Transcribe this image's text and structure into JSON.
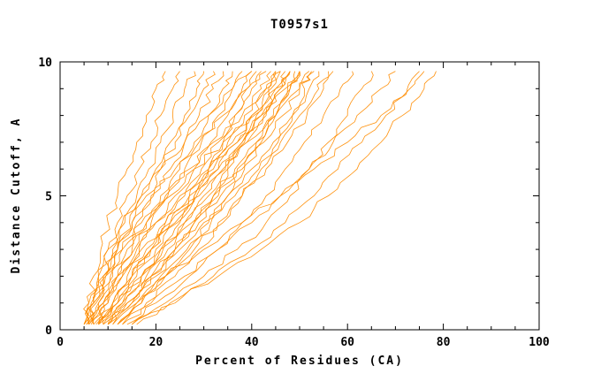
{
  "chart_data": {
    "type": "line",
    "title": "T0957s1",
    "xlabel": "Percent of Residues (CA)",
    "ylabel": "Distance Cutoff, A",
    "xlim": [
      0,
      100
    ],
    "ylim": [
      0,
      10
    ],
    "x_ticks": [
      0,
      20,
      40,
      60,
      80,
      100
    ],
    "y_ticks": [
      0,
      5,
      10
    ],
    "x_minor_step": 5,
    "y_minor_step": 1,
    "grid": false,
    "legend": "none",
    "series_color": "#ff8c00",
    "axis_color": "#000000",
    "background_color": "#ffffff",
    "y_levels": [
      0.2,
      1,
      2,
      3,
      4,
      5,
      6,
      7,
      8,
      9,
      9.65
    ],
    "series": [
      [
        5,
        6,
        7,
        8.5,
        10,
        12,
        14,
        16,
        18,
        20,
        22
      ],
      [
        5,
        6.5,
        8,
        10,
        12,
        14,
        16.5,
        19,
        21,
        23.5,
        25
      ],
      [
        5.5,
        7,
        9,
        11,
        13.5,
        16,
        18.5,
        21,
        23.5,
        26,
        28
      ],
      [
        6,
        7.5,
        9.5,
        12,
        14.5,
        17,
        20,
        23,
        26,
        28.5,
        30
      ],
      [
        5,
        7,
        9,
        12,
        15,
        18,
        21,
        24,
        27,
        30,
        32
      ],
      [
        6,
        8,
        10.5,
        13,
        16,
        19.5,
        23,
        26,
        29,
        32,
        34
      ],
      [
        7,
        9,
        12,
        15,
        18,
        21,
        25,
        28,
        31,
        34,
        36
      ],
      [
        6.5,
        9,
        12,
        15.5,
        19,
        22.5,
        26,
        29.5,
        33,
        36,
        38
      ],
      [
        7,
        10,
        13,
        16.5,
        20,
        24,
        28,
        31.5,
        35,
        38,
        40
      ],
      [
        8,
        11,
        14,
        18,
        22,
        26,
        29.5,
        33,
        36.5,
        40,
        42
      ],
      [
        7.5,
        11,
        15,
        19,
        23,
        27,
        31,
        35,
        38.5,
        42,
        44
      ],
      [
        8,
        12,
        16,
        20,
        24.5,
        28.5,
        33,
        37,
        40.5,
        44,
        46
      ],
      [
        9,
        13,
        17,
        21.5,
        26,
        30,
        34.5,
        38.5,
        42.5,
        46,
        48
      ],
      [
        9,
        13.5,
        18,
        22.5,
        27.5,
        32,
        36.5,
        41,
        44.5,
        48,
        50
      ],
      [
        10,
        14,
        19,
        24,
        29,
        33.5,
        38,
        42.5,
        46.5,
        50,
        52
      ],
      [
        10,
        15,
        20,
        25,
        30,
        35,
        40,
        44.5,
        48.5,
        52,
        54
      ],
      [
        11,
        16,
        21,
        26.5,
        31.5,
        36.5,
        41.5,
        46,
        50,
        54,
        56
      ],
      [
        12,
        17,
        22,
        28,
        33,
        38,
        43,
        47.5,
        51.5,
        55,
        57
      ],
      [
        5,
        6,
        8,
        10,
        13,
        17,
        21,
        26,
        31,
        36,
        40
      ],
      [
        6,
        7,
        9,
        12,
        15,
        19,
        24,
        29,
        34,
        39,
        43
      ],
      [
        5.5,
        7,
        9.5,
        13,
        17,
        22,
        27,
        32,
        38,
        43,
        46
      ],
      [
        6,
        8,
        11,
        14,
        18,
        23,
        28,
        34,
        40,
        45,
        48
      ],
      [
        7,
        9,
        12,
        16,
        20,
        25,
        31,
        37,
        42,
        47,
        50
      ],
      [
        8,
        10,
        13,
        17,
        22,
        27,
        33,
        39,
        45,
        50,
        53
      ],
      [
        8,
        12,
        17,
        21,
        25,
        28,
        31,
        34,
        36.5,
        39,
        41
      ],
      [
        10,
        14,
        19,
        24,
        28,
        32,
        35,
        38,
        41,
        43.5,
        45
      ],
      [
        12,
        17,
        22,
        27,
        31,
        35,
        38.5,
        42,
        45,
        47.5,
        49
      ],
      [
        13,
        18,
        24,
        29,
        34,
        38,
        42,
        45.5,
        48.5,
        51,
        52.5
      ],
      [
        14,
        20,
        27,
        33,
        38,
        43,
        47,
        51,
        55,
        58.5,
        61
      ],
      [
        15,
        22,
        30,
        37,
        43,
        48,
        52,
        56,
        60,
        63,
        65
      ],
      [
        13,
        19,
        26,
        33,
        40,
        46,
        52,
        57,
        62,
        67,
        70
      ],
      [
        16,
        24,
        32,
        40,
        47,
        53,
        58,
        63,
        68,
        72.5,
        75
      ],
      [
        15,
        23,
        33,
        42,
        50,
        56,
        62,
        67,
        71.5,
        76,
        78.5
      ],
      [
        12,
        16,
        22,
        30,
        38,
        46,
        53,
        60,
        67,
        73,
        76
      ],
      [
        9,
        12,
        15,
        19,
        23,
        28,
        32,
        36,
        40,
        43,
        45
      ],
      [
        10,
        13,
        17,
        21,
        26,
        31,
        35,
        39,
        43,
        46,
        48
      ],
      [
        11,
        15,
        19,
        24,
        28,
        33,
        37,
        41,
        45,
        48,
        50
      ],
      [
        8,
        11,
        15,
        19,
        24,
        29,
        34,
        38,
        42,
        45,
        47
      ]
    ]
  }
}
